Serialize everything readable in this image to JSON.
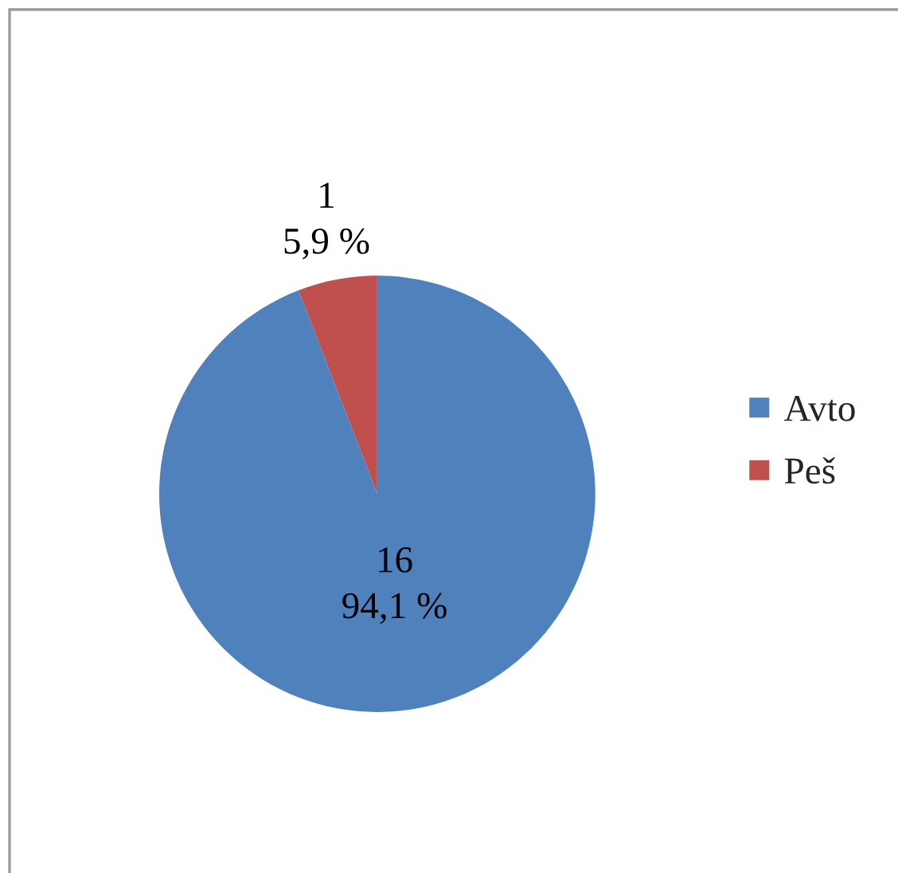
{
  "chart_data": {
    "type": "pie",
    "categories": [
      "Avto",
      "Peš"
    ],
    "values": [
      16,
      1
    ],
    "colors": [
      "#4f81bd",
      "#c0504d"
    ],
    "value_labels": [
      "16\n94,1 %",
      "1\n5,9 %"
    ],
    "legend": "right"
  }
}
